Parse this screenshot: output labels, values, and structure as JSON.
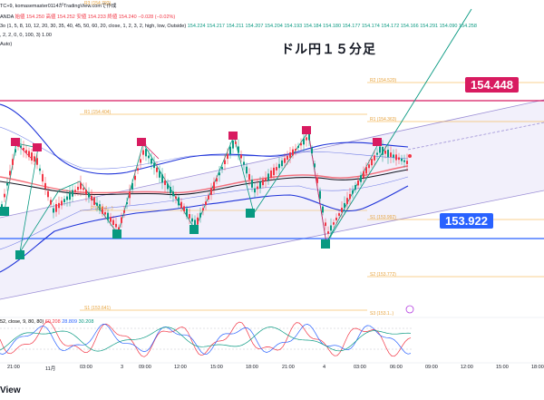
{
  "header": {
    "line1": "TC+9, komasemaster0114がTradingView.comで作成",
    "line2_symbol": "ANDA",
    "line2_ohlc": "始値 154.250 高値 154.252 安値 154.233 終値 154.240 −0.028 (−0.02%)",
    "line3_params": "3o (1, 5, 8, 10, 12, 20, 30, 35, 40, 45, 50, 60, 20, close, 1, 2, 3, 2, high, low, Outside)",
    "line3_values": "154.224  154.217  154.211  154.207  154.204  154.193  154.184  154.180  154.177  154.174  154.172  154.166  154.291  154.090  154.258",
    "line4": ", 2, 2, 0, 0, 100, 3)  1.00",
    "line5": "Auto)"
  },
  "chart_title": "ドル円１５分足",
  "price_tags": {
    "upper": "154.448",
    "lower": "153.922"
  },
  "pivot_levels": {
    "r3": "R3 (154.792)",
    "r2": "R2 (154.520)",
    "r1_left": "R1 (154.404)",
    "r1_right": "R1 (154.363)",
    "p_left": "P (154.1...)",
    "s1_right": "S1 (153.992)",
    "s2": "S2 (153.772)",
    "s1_left": "S1 (153.641)",
    "s3": "S3 (153.1..)"
  },
  "oscillator": {
    "label": "52, close, 9, 80, 80)",
    "v1": "60.208",
    "v2": "28.809",
    "v3": "30.208"
  },
  "time_axis": [
    "21:00",
    "11月",
    "03:00",
    "3",
    "09:00",
    "12:00",
    "15:00",
    "18:00",
    "21:00",
    "4",
    "03:00",
    "06:00",
    "09:00",
    "12:00",
    "15:00",
    "18:00"
  ],
  "footer": "View",
  "colors": {
    "up": "#089981",
    "down": "#f23645",
    "ma": "#131722",
    "band": "#1e33d9",
    "magenta": "#d81b60",
    "blue_line": "#2962ff",
    "pivot": "#f5a623",
    "channel": "#9c8fd6"
  }
}
